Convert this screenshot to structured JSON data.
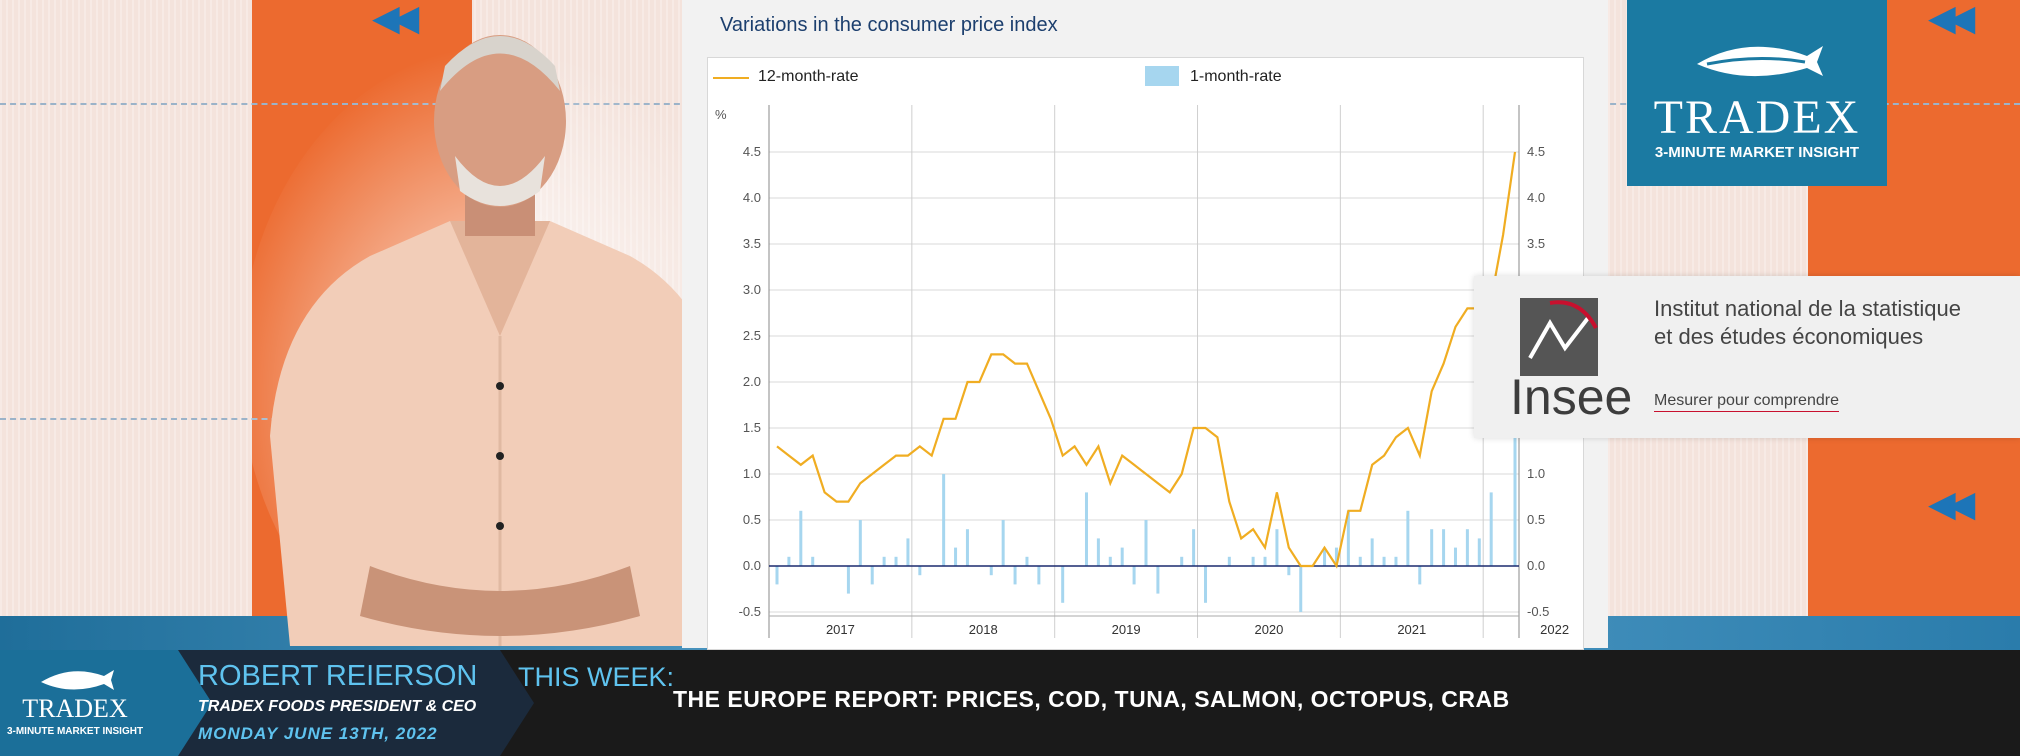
{
  "chart_data": {
    "type": "bar",
    "title": "Variations in the consumer price index",
    "ylabel": "%",
    "ylim": [
      -0.6,
      4.7
    ],
    "yticks": [
      "4.5",
      "4.0",
      "3.5",
      "3.0",
      "2.5",
      "2.0",
      "1.5",
      "1.0",
      "0.5",
      "0.0",
      "-0.5"
    ],
    "xticks": [
      "2017",
      "2018",
      "2019",
      "2020",
      "2021",
      "2022"
    ],
    "grid": true,
    "legend_position": "top",
    "series": [
      {
        "name": "12-month-rate",
        "type": "line",
        "color": "#f0ad22",
        "values": [
          1.3,
          1.2,
          1.1,
          1.2,
          0.8,
          0.7,
          0.7,
          0.9,
          1.0,
          1.1,
          1.2,
          1.2,
          1.3,
          1.2,
          1.6,
          1.6,
          2.0,
          2.0,
          2.3,
          2.3,
          2.2,
          2.2,
          1.9,
          1.6,
          1.2,
          1.3,
          1.1,
          1.3,
          0.9,
          1.2,
          1.1,
          1.0,
          0.9,
          0.8,
          1.0,
          1.5,
          1.5,
          1.4,
          0.7,
          0.3,
          0.4,
          0.2,
          0.8,
          0.2,
          0.0,
          0.0,
          0.2,
          0.0,
          0.6,
          0.6,
          1.1,
          1.2,
          1.4,
          1.5,
          1.2,
          1.9,
          2.2,
          2.6,
          2.8,
          2.8,
          2.9,
          3.6,
          4.5
        ]
      },
      {
        "name": "1-month-rate",
        "type": "bar",
        "color": "#a6d6ef",
        "values": [
          -0.2,
          0.1,
          0.6,
          0.1,
          0.0,
          0.0,
          -0.3,
          0.5,
          -0.2,
          0.1,
          0.1,
          0.3,
          -0.1,
          0.0,
          1.0,
          0.2,
          0.4,
          0.0,
          -0.1,
          0.5,
          -0.2,
          0.1,
          -0.2,
          0.0,
          -0.4,
          0.0,
          0.8,
          0.3,
          0.1,
          0.2,
          -0.2,
          0.5,
          -0.3,
          0.0,
          0.1,
          0.4,
          -0.4,
          0.0,
          0.1,
          0.0,
          0.1,
          0.1,
          0.4,
          -0.1,
          -0.5,
          0.0,
          0.2,
          0.2,
          0.6,
          0.1,
          0.3,
          0.1,
          0.1,
          0.6,
          -0.2,
          0.4,
          0.4,
          0.2,
          0.4,
          0.3,
          0.8,
          0.0,
          1.4
        ]
      }
    ]
  },
  "insee": {
    "name_line1": "Institut national de la statistique",
    "name_line2": "et des études économiques",
    "wordmark": "Insee",
    "tagline": "Mesurer pour comprendre"
  },
  "brand": {
    "tradex_word": "TRADEX",
    "tradex_sub": "3-MINUTE MARKET INSIGHT"
  },
  "lower_third": {
    "name": "ROBERT REIERSON",
    "role": "TRADEX FOODS PRESIDENT & CEO",
    "date": "MONDAY JUNE 13TH, 2022",
    "this_week": "THIS WEEK:",
    "headline": "THE EUROPE REPORT: PRICES, COD, TUNA, SALMON, OCTOPUS, CRAB"
  },
  "colors": {
    "orange": "#ec6a2f",
    "tradex_blue": "#1b7aa2",
    "accent_cyan": "#5fc3ef",
    "line": "#f0ad22",
    "bar": "#a6d6ef"
  },
  "icons": [
    "rewind-icon",
    "fish-icon",
    "insee-logo-icon"
  ]
}
